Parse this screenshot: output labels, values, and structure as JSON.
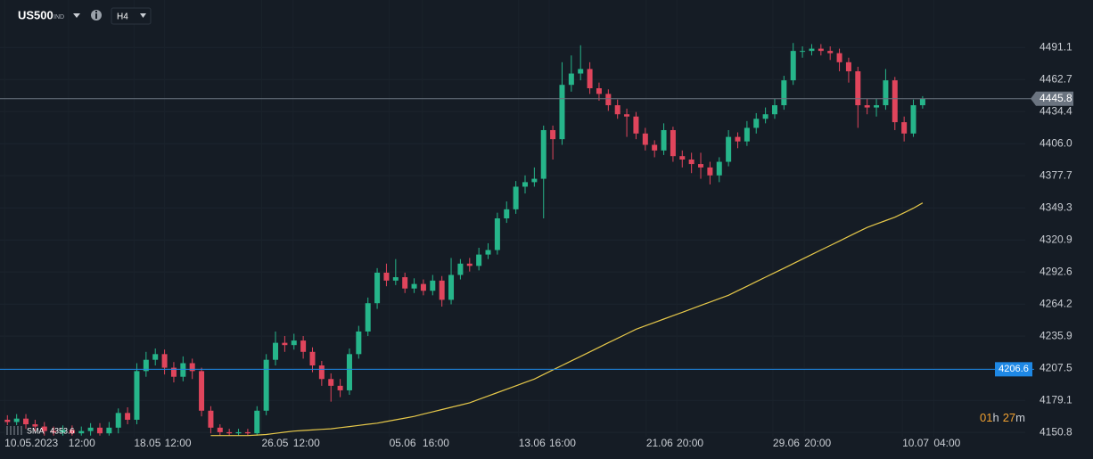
{
  "chart_data": {
    "type": "candlestick",
    "symbol": "US500",
    "symbol_class": "IND",
    "timeframe": "H4",
    "x": [
      0,
      1,
      2,
      3,
      4,
      5,
      6,
      7,
      8,
      9,
      10,
      11,
      12,
      13,
      14,
      15,
      16,
      17,
      18,
      19,
      20,
      21,
      22,
      23,
      24,
      25,
      26,
      27,
      28,
      29,
      30,
      31,
      32,
      33,
      34,
      35,
      36,
      37,
      38,
      39,
      40,
      41,
      42,
      43,
      44,
      45,
      46,
      47,
      48,
      49,
      50,
      51,
      52,
      53,
      54,
      55,
      56,
      57,
      58,
      59,
      60,
      61,
      62,
      63,
      64,
      65,
      66,
      67,
      68,
      69,
      70,
      71,
      72,
      73,
      74,
      75,
      76,
      77,
      78,
      79,
      80,
      81,
      82,
      83,
      84,
      85,
      86,
      87,
      88,
      89,
      90,
      91,
      92,
      93,
      94,
      95,
      96,
      97,
      98,
      99
    ],
    "open": [
      4162,
      4160,
      4163,
      4158,
      4156,
      4152,
      4151,
      4153,
      4150,
      4152,
      4155,
      4150,
      4155,
      4168,
      4162,
      4205,
      4215,
      4220,
      4208,
      4200,
      4212,
      4205,
      4170,
      4155,
      4151,
      4150,
      4151,
      4150,
      4170,
      4215,
      4230,
      4228,
      4232,
      4222,
      4210,
      4198,
      4192,
      4188,
      4220,
      4240,
      4265,
      4292,
      4285,
      4288,
      4278,
      4282,
      4276,
      4285,
      4268,
      4290,
      4300,
      4298,
      4308,
      4312,
      4340,
      4348,
      4368,
      4372,
      4375,
      4418,
      4410,
      4458,
      4468,
      4472,
      4455,
      4450,
      4440,
      4432,
      4430,
      4415,
      4405,
      4400,
      4418,
      4395,
      4392,
      4388,
      4385,
      4378,
      4390,
      4412,
      4408,
      4420,
      4428,
      4432,
      4440,
      4462,
      4488,
      4488,
      4490,
      4488,
      4486,
      4478,
      4470,
      4440,
      4438,
      4440,
      4462,
      4425,
      4415,
      4440
    ],
    "high": [
      4166,
      4167,
      4167,
      4162,
      4160,
      4156,
      4157,
      4157,
      4156,
      4159,
      4159,
      4160,
      4172,
      4173,
      4212,
      4222,
      4225,
      4224,
      4213,
      4218,
      4216,
      4208,
      4174,
      4158,
      4154,
      4154,
      4154,
      4174,
      4220,
      4240,
      4236,
      4238,
      4236,
      4226,
      4214,
      4203,
      4198,
      4225,
      4245,
      4270,
      4296,
      4300,
      4304,
      4292,
      4287,
      4286,
      4290,
      4289,
      4305,
      4304,
      4305,
      4314,
      4318,
      4345,
      4355,
      4373,
      4378,
      4385,
      4422,
      4422,
      4478,
      4484,
      4493,
      4478,
      4460,
      4454,
      4445,
      4437,
      4434,
      4420,
      4409,
      4424,
      4421,
      4400,
      4398,
      4398,
      4390,
      4394,
      4418,
      4416,
      4426,
      4433,
      4438,
      4446,
      4466,
      4495,
      4492,
      4494,
      4494,
      4492,
      4490,
      4482,
      4474,
      4446,
      4446,
      4472,
      4465,
      4430,
      4445,
      4448
    ],
    "low": [
      4156,
      4156,
      4154,
      4152,
      4148,
      4148,
      4148,
      4148,
      4148,
      4148,
      4148,
      4148,
      4150,
      4158,
      4158,
      4200,
      4210,
      4202,
      4195,
      4196,
      4198,
      4165,
      4150,
      4148,
      4148,
      4148,
      4148,
      4148,
      4166,
      4210,
      4222,
      4224,
      4216,
      4204,
      4192,
      4178,
      4182,
      4184,
      4216,
      4236,
      4260,
      4280,
      4281,
      4274,
      4274,
      4272,
      4272,
      4262,
      4264,
      4286,
      4293,
      4294,
      4304,
      4308,
      4336,
      4344,
      4362,
      4368,
      4340,
      4392,
      4405,
      4452,
      4462,
      4450,
      4444,
      4435,
      4428,
      4412,
      4410,
      4400,
      4394,
      4396,
      4390,
      4385,
      4380,
      4375,
      4370,
      4372,
      4386,
      4402,
      4404,
      4415,
      4424,
      4428,
      4436,
      4458,
      4482,
      4484,
      4484,
      4480,
      4470,
      4460,
      4420,
      4432,
      4430,
      4436,
      4418,
      4408,
      4412,
      4437
    ],
    "close": [
      4160,
      4163,
      4158,
      4156,
      4152,
      4151,
      4153,
      4150,
      4152,
      4155,
      4150,
      4155,
      4168,
      4162,
      4205,
      4215,
      4220,
      4208,
      4200,
      4212,
      4205,
      4170,
      4155,
      4151,
      4150,
      4151,
      4150,
      4170,
      4215,
      4230,
      4228,
      4232,
      4222,
      4210,
      4198,
      4192,
      4188,
      4220,
      4240,
      4265,
      4292,
      4285,
      4288,
      4278,
      4282,
      4276,
      4285,
      4268,
      4290,
      4300,
      4298,
      4308,
      4312,
      4340,
      4348,
      4368,
      4372,
      4375,
      4418,
      4410,
      4458,
      4468,
      4472,
      4455,
      4450,
      4440,
      4432,
      4430,
      4415,
      4405,
      4400,
      4418,
      4395,
      4392,
      4388,
      4385,
      4378,
      4390,
      4412,
      4408,
      4420,
      4428,
      4432,
      4440,
      4462,
      4488,
      4488,
      4490,
      4488,
      4486,
      4478,
      4470,
      4440,
      4438,
      4440,
      4462,
      4425,
      4415,
      4440,
      4445.8
    ],
    "up_color": "#26b58a",
    "down_color": "#e0455c",
    "series": [
      {
        "name": "SMA",
        "color": "#e6c84a",
        "values": [
          null,
          null,
          null,
          null,
          null,
          null,
          null,
          null,
          null,
          null,
          null,
          null,
          null,
          null,
          null,
          null,
          null,
          null,
          null,
          null,
          null,
          null,
          4148,
          4148,
          4148,
          4148,
          4148,
          4148.5,
          4149,
          4150,
          4151,
          4152,
          4152.5,
          4153,
          4153.5,
          4154,
          4155,
          4156,
          4157,
          4158,
          4159,
          4160.5,
          4162,
          4163.5,
          4165,
          4167,
          4169,
          4171,
          4173,
          4175,
          4177,
          4180,
          4183,
          4186,
          4189,
          4192,
          4195,
          4198,
          4202,
          4206,
          4210,
          4214,
          4218,
          4222,
          4226,
          4230,
          4234,
          4238,
          4242,
          4245,
          4248,
          4251,
          4254,
          4257,
          4260,
          4263,
          4266,
          4269,
          4272,
          4276,
          4280,
          4284,
          4288,
          4292,
          4296,
          4300,
          4304,
          4308,
          4312,
          4316,
          4320,
          4324,
          4328,
          4332,
          4335,
          4338,
          4341,
          4345,
          4349,
          4353.6
        ]
      }
    ],
    "hline": {
      "value": 4206.6,
      "color": "#1e88e5"
    },
    "current_color": "#6b7480",
    "xlim": [
      -0.8,
      110.1
    ],
    "xticks": [
      {
        "value": -0.3,
        "label": "10.05.2023"
      },
      {
        "value": 6.6,
        "label": "12:00"
      },
      {
        "value": 13.7,
        "label": "18.05"
      },
      {
        "value": 17.0,
        "label": "12:00"
      },
      {
        "value": 27.5,
        "label": "26.05"
      },
      {
        "value": 30.9,
        "label": "12:00"
      },
      {
        "value": 41.3,
        "label": "05.06"
      },
      {
        "value": 44.9,
        "label": "16:00"
      },
      {
        "value": 55.3,
        "label": "13.06"
      },
      {
        "value": 58.6,
        "label": "16:00"
      },
      {
        "value": 69.1,
        "label": "21.06"
      },
      {
        "value": 72.4,
        "label": "20:00"
      },
      {
        "value": 82.8,
        "label": "29.06"
      },
      {
        "value": 86.2,
        "label": "20:00"
      },
      {
        "value": 96.8,
        "label": "10.07"
      },
      {
        "value": 100.2,
        "label": "04:00"
      }
    ],
    "ylim": [
      4147,
      4533
    ],
    "yticks": [
      4491.1,
      4462.7,
      4434.4,
      {
        "value": 4406,
        "label": "4406.0"
      },
      4377.7,
      4349.3,
      4320.9,
      4292.6,
      4264.2,
      4235.9,
      4207.5,
      4179.1,
      4150.8
    ],
    "grid": true,
    "countdown": [
      "01",
      "h",
      "27",
      "m"
    ]
  }
}
